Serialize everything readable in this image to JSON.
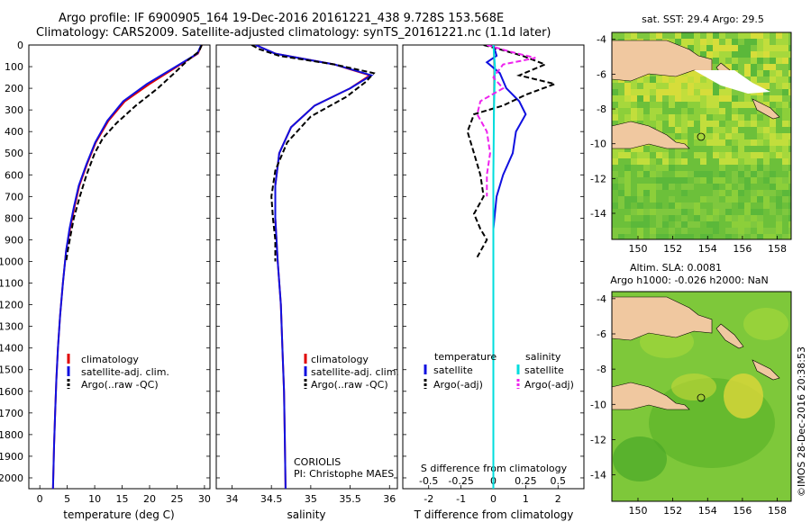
{
  "header": {
    "line1": "Argo profile: IF 6900905_164 19-Dec-2016 20161221_438 9.728S 153.568E",
    "line2": "Climatology: CARS2009. Satellite-adjusted climatology: synTS_20161221.nc (1.1d later)"
  },
  "colors": {
    "climatology": "#e00000",
    "satellite": "#1010e0",
    "argo": "#000000",
    "t_diff_argo": "#000000",
    "s_sat": "#00dddd",
    "s_argo": "#ee22ee",
    "land": "#f0c8a0"
  },
  "depth_ticks": [
    "0",
    "100",
    "200",
    "300",
    "400",
    "500",
    "600",
    "700",
    "800",
    "900",
    "1000",
    "1100",
    "1200",
    "1300",
    "1400",
    "1500",
    "1600",
    "1700",
    "1800",
    "1900",
    "2000"
  ],
  "panels": {
    "temperature": {
      "xlabel": "temperature (deg C)",
      "xticks": [
        "0",
        "5",
        "10",
        "15",
        "20",
        "25",
        "30"
      ],
      "legend": [
        "climatology",
        "satellite-adj. clim.",
        "Argo(..raw -QC)"
      ]
    },
    "salinity": {
      "xlabel": "salinity",
      "xticks": [
        "34",
        "34.5",
        "35",
        "35.5",
        "36"
      ],
      "legend": [
        "climatology",
        "satellite-adj. clim.",
        "Argo(..raw -QC)"
      ],
      "credit1": "CORIOLIS",
      "credit2": "PI: Christophe MAES"
    },
    "difference": {
      "xlabel": "T difference from climatology",
      "top_label": "S difference from climatology",
      "s_ticks": [
        "-0.5",
        "-0.25",
        "0",
        "0.25",
        "0.5"
      ],
      "t_ticks": [
        "-2",
        "-1",
        "0",
        "1",
        "2"
      ],
      "legend_t_title": "temperature",
      "legend_s_title": "salinity",
      "legend_t": [
        "satellite",
        "Argo(-adj)"
      ],
      "legend_s": [
        "satellite",
        "Argo(-adj)"
      ]
    },
    "sst_map": {
      "title": "sat. SST: 29.4  Argo: 29.5",
      "yticks": [
        "-4",
        "-6",
        "-8",
        "-10",
        "-12",
        "-14"
      ],
      "xticks": [
        "150",
        "152",
        "154",
        "156",
        "158"
      ]
    },
    "sla_map": {
      "title1": "Altim. SLA: 0.0081",
      "title2": "Argo h1000: -0.026  h2000: NaN",
      "yticks": [
        "-4",
        "-6",
        "-8",
        "-10",
        "-12",
        "-14"
      ],
      "xticks": [
        "150",
        "152",
        "154",
        "156",
        "158"
      ]
    }
  },
  "footer_credit": "©IMOS 28-Dec-2016 20:38:53",
  "chart_data": [
    {
      "type": "line",
      "title": "",
      "xlabel": "temperature (deg C)",
      "ylabel": "depth",
      "xlim": [
        -2,
        31
      ],
      "ylim": [
        2050,
        0
      ],
      "series": [
        {
          "name": "climatology",
          "color": "red",
          "points": [
            [
              29.5,
              0
            ],
            [
              28.8,
              40
            ],
            [
              25,
              100
            ],
            [
              20,
              180
            ],
            [
              15.5,
              260
            ],
            [
              12.5,
              350
            ],
            [
              10.2,
              450
            ],
            [
              8.6,
              550
            ],
            [
              7.2,
              650
            ],
            [
              6.3,
              750
            ],
            [
              5.5,
              850
            ],
            [
              4.8,
              950
            ],
            [
              4.2,
              1100
            ],
            [
              3.7,
              1250
            ],
            [
              3.3,
              1400
            ],
            [
              3,
              1550
            ],
            [
              2.8,
              1700
            ],
            [
              2.6,
              1850
            ],
            [
              2.4,
              2050
            ]
          ]
        },
        {
          "name": "satellite-adj. clim.",
          "color": "blue",
          "points": [
            [
              29.4,
              0
            ],
            [
              28.7,
              40
            ],
            [
              24.8,
              100
            ],
            [
              19.5,
              180
            ],
            [
              15.2,
              260
            ],
            [
              12.3,
              350
            ],
            [
              10.1,
              450
            ],
            [
              8.5,
              550
            ],
            [
              7.1,
              650
            ],
            [
              6.2,
              750
            ],
            [
              5.4,
              850
            ],
            [
              4.8,
              950
            ],
            [
              4.2,
              1100
            ],
            [
              3.7,
              1250
            ],
            [
              3.3,
              1400
            ],
            [
              3,
              1550
            ],
            [
              2.8,
              1700
            ],
            [
              2.6,
              1850
            ],
            [
              2.4,
              2050
            ]
          ]
        },
        {
          "name": "Argo(..raw -QC)",
          "color": "black",
          "dashed": true,
          "points": [
            [
              29.5,
              0
            ],
            [
              29,
              30
            ],
            [
              27,
              70
            ],
            [
              24.5,
              130
            ],
            [
              21.5,
              200
            ],
            [
              17.5,
              280
            ],
            [
              14,
              360
            ],
            [
              11.5,
              430
            ],
            [
              10,
              500
            ],
            [
              8.5,
              600
            ],
            [
              7.3,
              700
            ],
            [
              6.2,
              800
            ],
            [
              5.6,
              880
            ],
            [
              5.1,
              950
            ],
            [
              4.8,
              1000
            ]
          ]
        }
      ]
    },
    {
      "type": "line",
      "title": "",
      "xlabel": "salinity",
      "ylabel": "depth",
      "xlim": [
        33.8,
        36.1
      ],
      "ylim": [
        2050,
        0
      ],
      "series": [
        {
          "name": "climatology",
          "color": "red",
          "points": [
            [
              34.3,
              0
            ],
            [
              34.55,
              40
            ],
            [
              35.3,
              90
            ],
            [
              35.75,
              140
            ],
            [
              35.5,
              200
            ],
            [
              35.05,
              280
            ],
            [
              34.75,
              380
            ],
            [
              34.6,
              500
            ],
            [
              34.55,
              650
            ],
            [
              34.55,
              800
            ],
            [
              34.58,
              1000
            ],
            [
              34.62,
              1200
            ],
            [
              34.64,
              1400
            ],
            [
              34.66,
              1600
            ],
            [
              34.67,
              1800
            ],
            [
              34.68,
              2050
            ]
          ]
        },
        {
          "name": "satellite-adj. clim.",
          "color": "blue",
          "points": [
            [
              34.3,
              0
            ],
            [
              34.55,
              40
            ],
            [
              35.3,
              90
            ],
            [
              35.77,
              140
            ],
            [
              35.5,
              200
            ],
            [
              35.05,
              280
            ],
            [
              34.75,
              380
            ],
            [
              34.6,
              500
            ],
            [
              34.55,
              650
            ],
            [
              34.55,
              800
            ],
            [
              34.58,
              1000
            ],
            [
              34.62,
              1200
            ],
            [
              34.64,
              1400
            ],
            [
              34.66,
              1600
            ],
            [
              34.67,
              1800
            ],
            [
              34.68,
              2050
            ]
          ]
        },
        {
          "name": "Argo(..raw -QC)",
          "color": "black",
          "dashed": true,
          "points": [
            [
              34.25,
              0
            ],
            [
              34.35,
              20
            ],
            [
              34.6,
              50
            ],
            [
              35.3,
              90
            ],
            [
              35.8,
              130
            ],
            [
              35.7,
              170
            ],
            [
              35.45,
              240
            ],
            [
              35,
              330
            ],
            [
              34.7,
              450
            ],
            [
              34.55,
              580
            ],
            [
              34.5,
              700
            ],
            [
              34.52,
              800
            ],
            [
              34.55,
              900
            ],
            [
              34.55,
              1000
            ]
          ]
        }
      ]
    },
    {
      "type": "line",
      "title": "",
      "xlabel": "T difference from climatology",
      "ylabel": "depth",
      "xlim": [
        -2.8,
        2.8
      ],
      "ylim": [
        2050,
        0
      ],
      "series": [
        {
          "name": "temperature satellite",
          "color": "blue",
          "points": [
            [
              0,
              0
            ],
            [
              0.1,
              50
            ],
            [
              -0.2,
              80
            ],
            [
              0.2,
              130
            ],
            [
              0.4,
              200
            ],
            [
              0.8,
              260
            ],
            [
              1,
              320
            ],
            [
              0.7,
              400
            ],
            [
              0.6,
              500
            ],
            [
              0.3,
              600
            ],
            [
              0.1,
              700
            ],
            [
              0,
              850
            ],
            [
              0,
              2050
            ]
          ]
        },
        {
          "name": "temperature Argo(-adj)",
          "color": "black",
          "dashed": true,
          "points": [
            [
              -0.3,
              0
            ],
            [
              0.2,
              20
            ],
            [
              0.9,
              50
            ],
            [
              1.6,
              90
            ],
            [
              0.8,
              140
            ],
            [
              1.9,
              180
            ],
            [
              1,
              230
            ],
            [
              0.3,
              280
            ],
            [
              -0.6,
              320
            ],
            [
              -0.8,
              400
            ],
            [
              -0.6,
              500
            ],
            [
              -0.4,
              600
            ],
            [
              -0.3,
              700
            ],
            [
              -0.6,
              780
            ],
            [
              -0.4,
              850
            ],
            [
              -0.2,
              900
            ],
            [
              -0.5,
              980
            ]
          ]
        },
        {
          "name": "salinity satellite",
          "color": "cyan",
          "points": [
            [
              0,
              0
            ],
            [
              0.05,
              100
            ],
            [
              0.02,
              300
            ],
            [
              0,
              600
            ],
            [
              0,
              2050
            ]
          ]
        },
        {
          "name": "salinity Argo(-adj)",
          "color": "magenta",
          "dashed": true,
          "points": [
            [
              -0.2,
              0
            ],
            [
              0.5,
              30
            ],
            [
              1.3,
              60
            ],
            [
              0.3,
              90
            ],
            [
              0,
              150
            ],
            [
              0.3,
              200
            ],
            [
              -0.4,
              260
            ],
            [
              -0.5,
              320
            ],
            [
              -0.2,
              400
            ],
            [
              -0.1,
              500
            ],
            [
              -0.2,
              600
            ],
            [
              -0.2,
              700
            ]
          ]
        }
      ]
    }
  ]
}
